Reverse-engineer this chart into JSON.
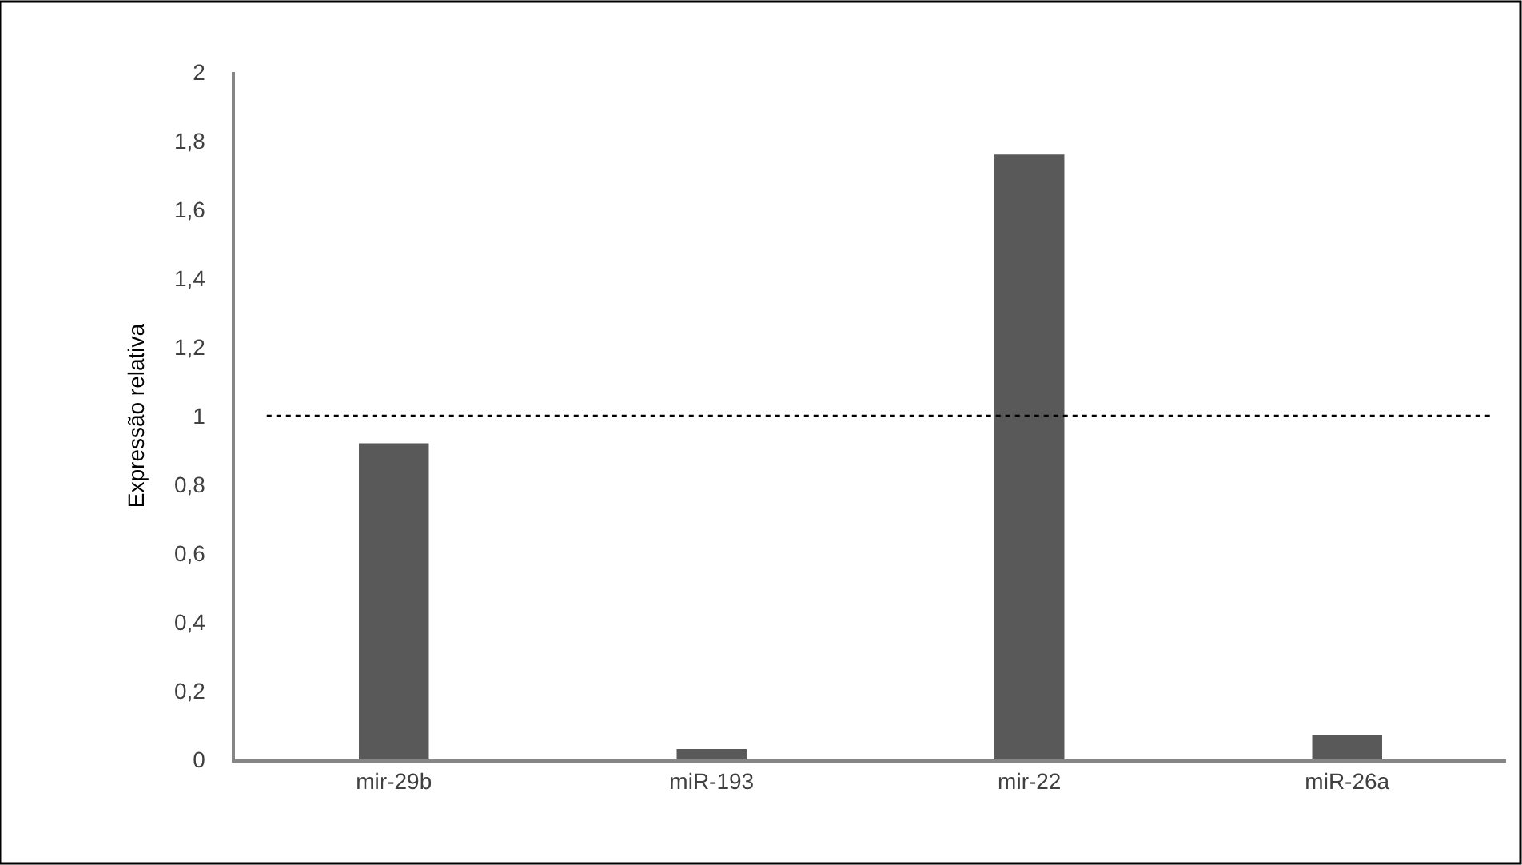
{
  "chart_data": {
    "type": "bar",
    "ylabel": "Expressão relativa",
    "categories": [
      "mir-29b",
      "miR-193",
      "mir-22",
      "miR-26a"
    ],
    "values": [
      0.92,
      0.03,
      1.76,
      0.07
    ],
    "color": "#595959",
    "ylim": [
      0,
      2
    ],
    "yticks": [
      0,
      {
        "value": 0.2,
        "label": "0,2"
      },
      {
        "value": 0.4,
        "label": "0,4"
      },
      {
        "value": 0.6,
        "label": "0,6"
      },
      {
        "value": 0.8,
        "label": "0,8"
      },
      1,
      {
        "value": 1.2,
        "label": "1,2"
      },
      {
        "value": 1.4,
        "label": "1,4"
      },
      {
        "value": 1.6,
        "label": "1,6"
      },
      {
        "value": 1.8,
        "label": "1,8"
      },
      2
    ],
    "ref_lines": [
      {
        "axis": "y",
        "value": 1,
        "color": "#000000",
        "line_style": "dotted"
      }
    ]
  }
}
